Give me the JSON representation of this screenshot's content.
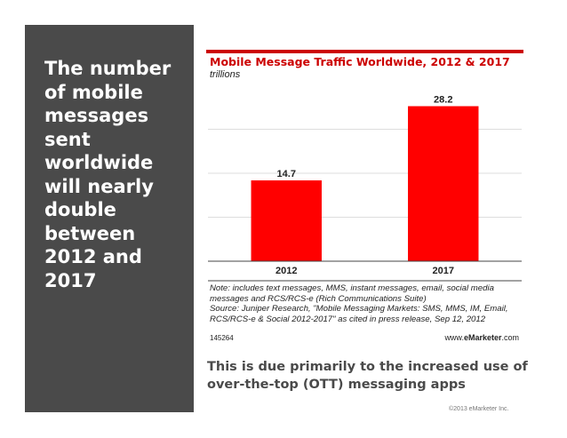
{
  "headline": "The number of mobile messages sent worldwide will nearly double between 2012 and 2017",
  "chart_data": {
    "type": "bar",
    "title": "Mobile Message Traffic Worldwide, 2012 & 2017",
    "unit": "trillions",
    "categories": [
      "2012",
      "2017"
    ],
    "values": [
      14.7,
      28.2
    ],
    "data_labels": [
      "14.7",
      "28.2"
    ],
    "ylim": [
      0,
      32
    ],
    "grid": true,
    "legend": "none",
    "bar_color": "#ff0000",
    "note": "Note: includes text messages, MMS, instant messages, email, social media messages and RCS/RCS-e (Rich Communications Suite)",
    "source": "Source: Juniper Research, \"Mobile Messaging Markets: SMS, MMS, IM, Email, RCS/RCS-e & Social 2012-2017\" as cited in press release, Sep 12, 2012",
    "chart_id": "145264",
    "brand_prefix": "www.",
    "brand_name": "eMarketer",
    "brand_suffix": ".com"
  },
  "caption": "This is due primarily to the increased use of over-the-top (OTT) messaging apps",
  "copyright": "©2013 eMarketer Inc."
}
